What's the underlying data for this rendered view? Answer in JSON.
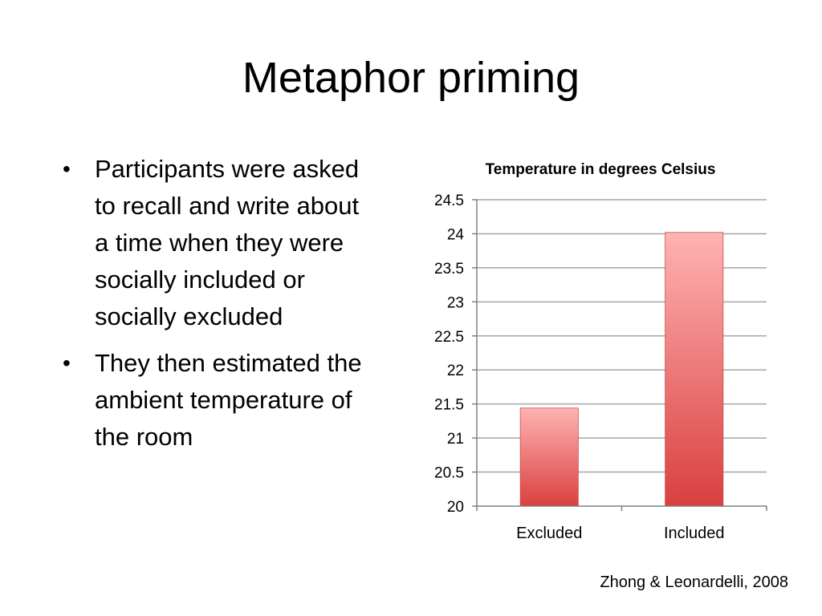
{
  "slide": {
    "title": "Metaphor priming",
    "bullets": [
      "Participants were asked to recall and write about a time when they were socially included or socially excluded",
      "They then estimated the ambient temperature of the room"
    ],
    "citation": "Zhong & Leonardelli, 2008"
  },
  "colors": {
    "bar_top": "#ffb3b3",
    "bar_bottom": "#d9403f",
    "gridline": "#a6a6a6",
    "axis": "#808080"
  },
  "chart_data": {
    "type": "bar",
    "title": "Temperature in degrees Celsius",
    "categories": [
      "Excluded",
      "Included"
    ],
    "values": [
      21.44,
      24.02
    ],
    "ylim": [
      20,
      24.5
    ],
    "yticks": [
      "20",
      "20.5",
      "21",
      "21.5",
      "22",
      "22.5",
      "23",
      "23.5",
      "24",
      "24.5"
    ],
    "xlabel": "",
    "ylabel": "",
    "grid": true,
    "legend": "none"
  }
}
